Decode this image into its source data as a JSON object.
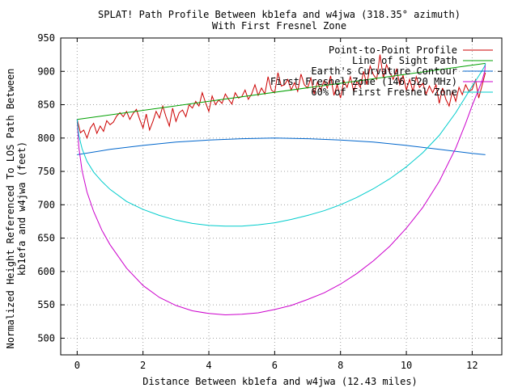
{
  "chart_data": {
    "type": "line",
    "title": "SPLAT! Path Profile Between kb1efa and w4jwa (318.35° azimuth)",
    "subtitle": "With First Fresnel Zone",
    "xlabel": "Distance Between kb1efa and w4jwa (12.43 miles)",
    "ylabel_line1": "Normalized Height Referenced To LOS Path Between",
    "ylabel_line2": "kb1efa and w4jwa (feet)",
    "xlim": [
      -0.5,
      12.9
    ],
    "ylim": [
      475,
      950
    ],
    "xticks": [
      0,
      2,
      4,
      6,
      8,
      10,
      12
    ],
    "yticks": [
      500,
      550,
      600,
      650,
      700,
      750,
      800,
      850,
      900,
      950
    ],
    "grid": true,
    "legend_position": "top-right",
    "series": [
      {
        "name": "Point-to-Point Profile",
        "color": "#cc0000",
        "x": [
          0,
          0.1,
          0.2,
          0.3,
          0.4,
          0.5,
          0.6,
          0.7,
          0.8,
          0.9,
          1.0,
          1.1,
          1.2,
          1.3,
          1.4,
          1.5,
          1.6,
          1.7,
          1.8,
          1.9,
          2.0,
          2.1,
          2.2,
          2.3,
          2.4,
          2.5,
          2.6,
          2.7,
          2.8,
          2.9,
          3.0,
          3.1,
          3.2,
          3.3,
          3.4,
          3.5,
          3.6,
          3.7,
          3.8,
          3.9,
          4.0,
          4.1,
          4.2,
          4.3,
          4.4,
          4.5,
          4.6,
          4.7,
          4.8,
          4.9,
          5.0,
          5.1,
          5.2,
          5.3,
          5.4,
          5.5,
          5.6,
          5.7,
          5.8,
          5.9,
          6.0,
          6.1,
          6.2,
          6.3,
          6.4,
          6.5,
          6.6,
          6.7,
          6.8,
          6.9,
          7.0,
          7.1,
          7.2,
          7.3,
          7.4,
          7.5,
          7.6,
          7.7,
          7.8,
          7.9,
          8.0,
          8.1,
          8.2,
          8.3,
          8.4,
          8.5,
          8.6,
          8.7,
          8.8,
          8.9,
          9.0,
          9.1,
          9.2,
          9.3,
          9.4,
          9.5,
          9.6,
          9.7,
          9.8,
          9.9,
          10.0,
          10.1,
          10.2,
          10.3,
          10.4,
          10.5,
          10.6,
          10.7,
          10.8,
          10.9,
          11.0,
          11.1,
          11.2,
          11.3,
          11.4,
          11.5,
          11.6,
          11.7,
          11.8,
          11.9,
          12.0,
          12.1,
          12.2,
          12.3,
          12.4
        ],
        "values": [
          828,
          808,
          812,
          800,
          815,
          822,
          807,
          818,
          810,
          826,
          820,
          824,
          833,
          838,
          832,
          840,
          828,
          837,
          843,
          828,
          815,
          836,
          812,
          825,
          840,
          830,
          848,
          832,
          818,
          845,
          825,
          838,
          842,
          832,
          850,
          845,
          855,
          848,
          868,
          853,
          840,
          863,
          850,
          857,
          852,
          866,
          858,
          851,
          868,
          860,
          862,
          872,
          858,
          866,
          880,
          864,
          875,
          866,
          892,
          872,
          868,
          898,
          878,
          880,
          888,
          872,
          883,
          870,
          896,
          880,
          875,
          890,
          866,
          884,
          872,
          886,
          875,
          893,
          864,
          880,
          860,
          886,
          876,
          892,
          870,
          885,
          876,
          900,
          880,
          908,
          895,
          888,
          925,
          890,
          910,
          898,
          888,
          903,
          880,
          894,
          872,
          888,
          870,
          892,
          876,
          882,
          866,
          878,
          868,
          880,
          852,
          875,
          858,
          848,
          870,
          855,
          876,
          865,
          880,
          870,
          873,
          887,
          860,
          879,
          898
        ]
      },
      {
        "name": "Line of Sight Path",
        "color": "#00a000",
        "x": [
          0,
          12.4
        ],
        "values": [
          828,
          912
        ]
      },
      {
        "name": "Earth's Curvature Contour",
        "color": "#0066cc",
        "x": [
          0,
          1,
          2,
          3,
          4,
          5,
          6,
          7,
          8,
          9,
          10,
          11,
          12,
          12.4
        ],
        "values": [
          775,
          783,
          789,
          794,
          797,
          799,
          800,
          799,
          797,
          794,
          789,
          783,
          777,
          775
        ]
      },
      {
        "name": "First Fresnel Zone (146.520 MHz)",
        "color": "#cc00cc",
        "x": [
          0,
          0.05,
          0.15,
          0.3,
          0.5,
          0.75,
          1,
          1.5,
          2,
          2.5,
          3,
          3.5,
          4,
          4.5,
          5,
          5.5,
          6,
          6.5,
          7,
          7.5,
          8,
          8.5,
          9,
          9.5,
          10,
          10.5,
          11,
          11.5,
          11.8,
          12,
          12.2,
          12.3,
          12.38,
          12.4
        ],
        "values": [
          828,
          786,
          751,
          719,
          690,
          662,
          640,
          605,
          579,
          561,
          549,
          541,
          537,
          535,
          536,
          538,
          543,
          549,
          558,
          568,
          581,
          597,
          616,
          638,
          665,
          696,
          735,
          785,
          822,
          849,
          873,
          886,
          900,
          912
        ]
      },
      {
        "name": "60% of First Fresnel Zone",
        "color": "#00cccc",
        "x": [
          0,
          0.05,
          0.15,
          0.3,
          0.5,
          0.75,
          1,
          1.5,
          2,
          2.5,
          3,
          3.5,
          4,
          4.5,
          5,
          5.5,
          6,
          6.5,
          7,
          7.5,
          8,
          8.5,
          9,
          9.5,
          10,
          10.5,
          11,
          11.5,
          11.8,
          12,
          12.2,
          12.3,
          12.38,
          12.4
        ],
        "values": [
          828,
          804,
          784,
          765,
          749,
          735,
          723,
          705,
          693,
          684,
          677,
          672,
          669,
          668,
          668,
          670,
          673,
          678,
          684,
          691,
          700,
          711,
          724,
          739,
          757,
          778,
          804,
          838,
          862,
          878,
          893,
          901,
          908,
          912
        ]
      }
    ]
  }
}
